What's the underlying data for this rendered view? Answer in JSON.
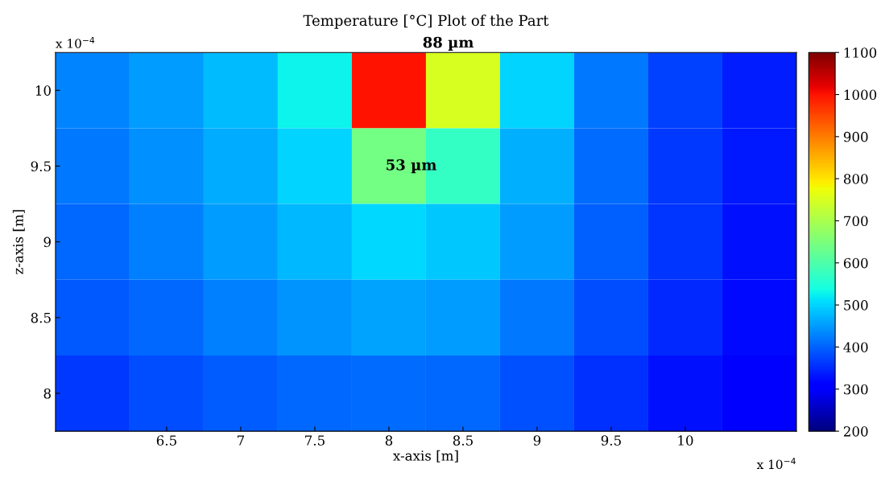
{
  "chart_data": {
    "type": "heatmap",
    "title": "Temperature [°C] Plot of the Part",
    "xlabel": "x-axis [m]",
    "ylabel": "z-axis [m]",
    "categories": [
      null,
      "6.5",
      "7",
      "7.5",
      "8",
      "8.5",
      "9",
      "9.5",
      "10",
      null
    ],
    "y_categories": [
      "10",
      "9.5",
      "9",
      "8.5",
      "8"
    ],
    "cells": [
      [
        430,
        450,
        480,
        530,
        1000,
        750,
        500,
        420,
        370,
        340
      ],
      [
        420,
        440,
        465,
        500,
        640,
        570,
        470,
        410,
        365,
        335
      ],
      [
        405,
        425,
        450,
        475,
        505,
        490,
        450,
        400,
        360,
        330
      ],
      [
        390,
        405,
        425,
        445,
        460,
        450,
        420,
        380,
        350,
        320
      ],
      [
        365,
        380,
        395,
        405,
        410,
        405,
        385,
        355,
        330,
        305
      ]
    ],
    "clim": [
      200,
      1100
    ],
    "cticks": [
      200,
      300,
      400,
      500,
      600,
      700,
      800,
      900,
      1000,
      1100
    ],
    "annotations": [
      "88 µm",
      "53 µm",
      "x 10$^{−4}$",
      "x 10$^{−4}$"
    ]
  }
}
